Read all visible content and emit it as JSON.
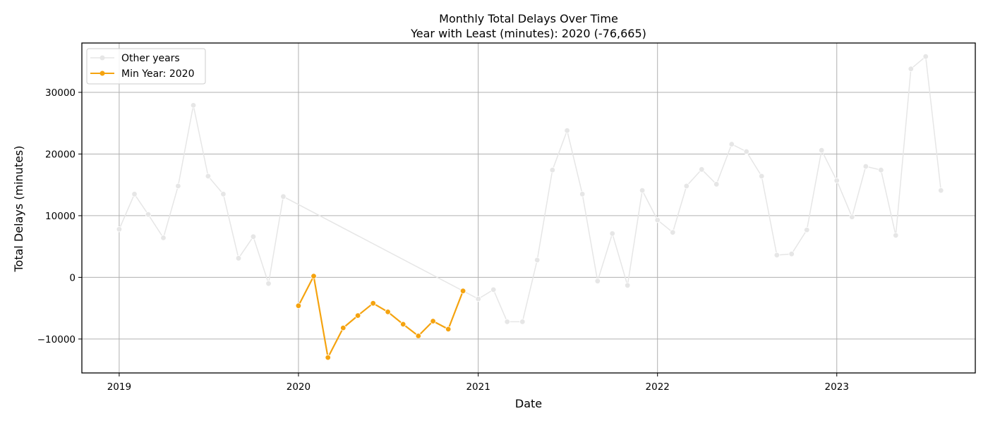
{
  "chart_data": {
    "type": "line",
    "title": "Monthly Total Delays Over Time",
    "subtitle": "Year with Least (minutes): 2020 (-76,665)",
    "xlabel": "Date",
    "ylabel": "Total Delays (minutes)",
    "xlim": [
      "2018-10-17",
      "2023-10-10"
    ],
    "ylim": [
      -15500,
      38000
    ],
    "x_ticks": [
      "2019",
      "2020",
      "2021",
      "2022",
      "2023"
    ],
    "y_ticks": [
      -10000,
      0,
      10000,
      20000,
      30000
    ],
    "y_tick_labels": [
      "−10000",
      "0",
      "10000",
      "20000",
      "30000"
    ],
    "grid": true,
    "legend": "top-left",
    "series": [
      {
        "name": "Other years",
        "color": "#e6e6e6",
        "dates": [
          "2019-01",
          "2019-02",
          "2019-03",
          "2019-04",
          "2019-05",
          "2019-06",
          "2019-07",
          "2019-08",
          "2019-09",
          "2019-10",
          "2019-11",
          "2019-12",
          "2021-01",
          "2021-02",
          "2021-03",
          "2021-04",
          "2021-05",
          "2021-06",
          "2021-07",
          "2021-08",
          "2021-09",
          "2021-10",
          "2021-11",
          "2021-12",
          "2022-01",
          "2022-02",
          "2022-03",
          "2022-04",
          "2022-05",
          "2022-06",
          "2022-07",
          "2022-08",
          "2022-09",
          "2022-10",
          "2022-11",
          "2022-12",
          "2023-01",
          "2023-02",
          "2023-03",
          "2023-04",
          "2023-05",
          "2023-06",
          "2023-07",
          "2023-08"
        ],
        "values": [
          7800,
          13500,
          10200,
          6400,
          14800,
          27900,
          16400,
          13500,
          3100,
          6600,
          -1000,
          13100,
          -3500,
          -2000,
          -7200,
          -7200,
          2800,
          17400,
          23800,
          13500,
          -600,
          7100,
          -1300,
          14100,
          9300,
          7300,
          14800,
          17500,
          15100,
          21600,
          20400,
          16400,
          3600,
          3800,
          7700,
          20600,
          15700,
          9800,
          18000,
          17400,
          6800,
          33800,
          35800,
          14100
        ]
      },
      {
        "name": "Min Year: 2020",
        "color": "#f5a30f",
        "dates": [
          "2020-01",
          "2020-02",
          "2020-03",
          "2020-04",
          "2020-05",
          "2020-06",
          "2020-07",
          "2020-08",
          "2020-09",
          "2020-10",
          "2020-11",
          "2020-12"
        ],
        "values": [
          -4600,
          200,
          -13000,
          -8200,
          -6200,
          -4200,
          -5600,
          -7600,
          -9500,
          -7100,
          -8400,
          -2200
        ]
      }
    ]
  }
}
